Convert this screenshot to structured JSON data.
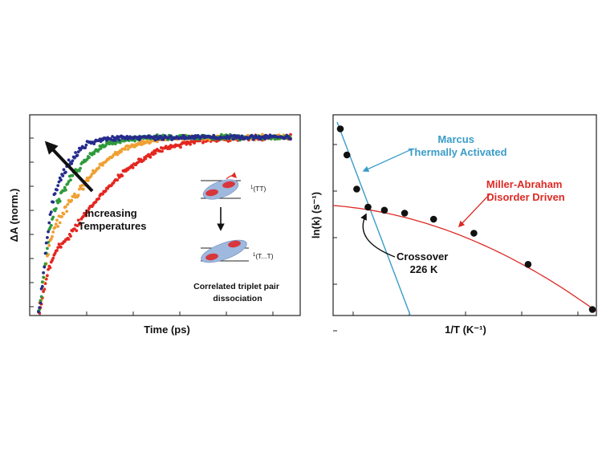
{
  "chart_data": [
    {
      "type": "scatter",
      "xlabel": "Time (ps)",
      "ylabel": "ΔA (norm.)",
      "annotation": "Increasing Temperatures",
      "inset_caption": [
        "Correlated triplet pair",
        "dissociation"
      ],
      "state_labels": [
        "1(TT)",
        "1(T...T)"
      ],
      "series": [
        {
          "color": "#e4261f",
          "rate": 0.12,
          "fast_fraction": 0.28
        },
        {
          "color": "#f0a033",
          "rate": 0.2,
          "fast_fraction": 0.42
        },
        {
          "color": "#2e9a3c",
          "rate": 0.33,
          "fast_fraction": 0.5
        },
        {
          "color": "#262c8c",
          "rate": 0.55,
          "fast_fraction": 0.55
        }
      ]
    },
    {
      "type": "scatter",
      "xlabel": "1/T (K⁻¹)",
      "ylabel": "ln(k) (s⁻¹)",
      "points": [
        {
          "x": 0.0,
          "y": 0.93
        },
        {
          "x": 0.026,
          "y": 0.8
        },
        {
          "x": 0.065,
          "y": 0.63
        },
        {
          "x": 0.11,
          "y": 0.54
        },
        {
          "x": 0.175,
          "y": 0.525
        },
        {
          "x": 0.255,
          "y": 0.51
        },
        {
          "x": 0.37,
          "y": 0.48
        },
        {
          "x": 0.53,
          "y": 0.41
        },
        {
          "x": 0.745,
          "y": 0.255
        },
        {
          "x": 1.0,
          "y": 0.03
        }
      ],
      "fits": [
        {
          "name": "Marcus",
          "subtitle": "Thermally Activated",
          "color": "#3a9cc8"
        },
        {
          "name": "Miller-Abraham",
          "subtitle": "Disorder Driven",
          "color": "#dd2a25"
        }
      ],
      "crossover": [
        "Crossover",
        "226 K"
      ]
    }
  ]
}
